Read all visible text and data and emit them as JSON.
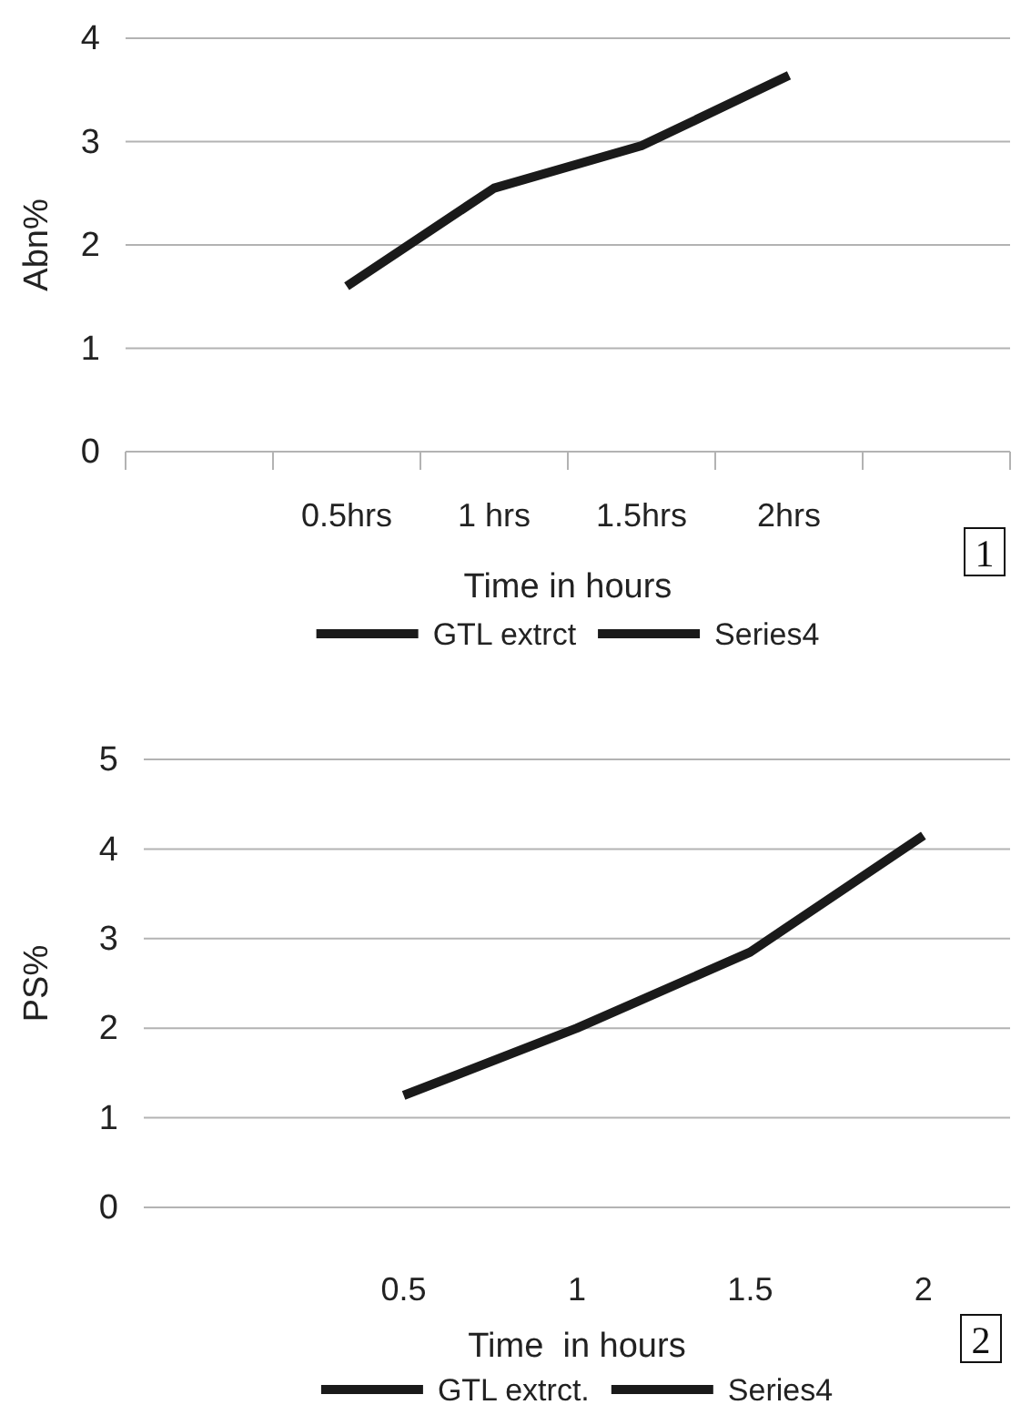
{
  "chart_data": [
    {
      "type": "line",
      "xlabel": "Time in hours",
      "ylabel": "Abn%",
      "categories": [
        null,
        "0.5hrs",
        "1 hrs",
        "1.5hrs",
        "2hrs",
        null
      ],
      "series": [
        {
          "name": "GTL extrct",
          "color": "#1a1a1a",
          "values": [
            null,
            1.6,
            2.55,
            2.96,
            3.64,
            null
          ]
        },
        {
          "name": "Series4",
          "color": "#1a1a1a",
          "values": [
            null,
            null,
            null,
            null,
            null,
            null
          ]
        }
      ],
      "ylim": [
        0,
        4
      ],
      "yticks": [
        0,
        1,
        2,
        3,
        4
      ],
      "grid": "y",
      "legend": "bottom",
      "marker": "none",
      "line_style": "solid",
      "annotations": [
        "1"
      ]
    },
    {
      "type": "line",
      "xlabel": "Time  in hours",
      "ylabel": "PS%",
      "categories": [
        null,
        "0.5",
        "1",
        "1.5",
        "2"
      ],
      "series": [
        {
          "name": "GTL extrct.",
          "color": "#1a1a1a",
          "values": [
            null,
            1.25,
            2.0,
            2.85,
            4.15
          ]
        },
        {
          "name": "Series4",
          "color": "#1a1a1a",
          "values": [
            null,
            null,
            null,
            null,
            null
          ]
        }
      ],
      "ylim": [
        0,
        5
      ],
      "yticks": [
        0,
        1,
        2,
        3,
        4,
        5
      ],
      "grid": "y",
      "legend": "bottom",
      "marker": "none",
      "line_style": "solid",
      "annotations": [
        "2"
      ]
    }
  ]
}
